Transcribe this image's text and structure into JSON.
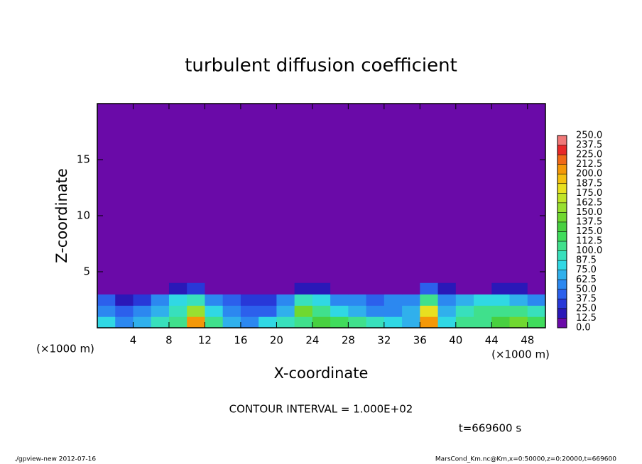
{
  "chart_data": {
    "type": "contour",
    "title": "turbulent diffusion coefficient",
    "x_label": "X-coordinate",
    "y_label": "Z-coordinate",
    "x_unit": "(×1000 m)",
    "y_unit": "(×1000 m)",
    "contour_note": "CONTOUR INTERVAL = 1.000E+02",
    "time_note": "t=669600 s",
    "footer_left": "./gpview-new  2012-07-16",
    "footer_right": "MarsCond_Km.nc@Km,x=0:50000,z=0:20000,t=669600",
    "xlim": [
      0,
      50
    ],
    "ylim": [
      0,
      20
    ],
    "xticks": [
      4,
      8,
      12,
      16,
      20,
      24,
      28,
      32,
      36,
      40,
      44,
      48
    ],
    "yticks": [
      5,
      10,
      15
    ],
    "x": [
      1,
      3,
      5,
      7,
      9,
      11,
      13,
      15,
      17,
      19,
      21,
      23,
      25,
      27,
      29,
      31,
      33,
      35,
      37,
      39,
      41,
      43,
      45,
      47,
      49
    ],
    "y": [
      0.5,
      1.5,
      2.5,
      3.5
    ],
    "z": [
      [
        80,
        60,
        70,
        90,
        110,
        210,
        100,
        70,
        60,
        80,
        90,
        100,
        130,
        120,
        100,
        90,
        80,
        70,
        200,
        80,
        100,
        110,
        130,
        140,
        120
      ],
      [
        60,
        40,
        50,
        70,
        90,
        160,
        80,
        50,
        40,
        40,
        70,
        140,
        100,
        80,
        70,
        60,
        60,
        70,
        180,
        70,
        90,
        100,
        110,
        100,
        90
      ],
      [
        40,
        20,
        30,
        60,
        80,
        90,
        60,
        40,
        30,
        30,
        60,
        90,
        80,
        60,
        50,
        40,
        50,
        60,
        100,
        60,
        70,
        80,
        80,
        70,
        60
      ],
      [
        5,
        5,
        5,
        10,
        20,
        30,
        10,
        5,
        5,
        5,
        10,
        20,
        15,
        10,
        10,
        10,
        5,
        10,
        40,
        15,
        10,
        10,
        20,
        15,
        10
      ]
    ],
    "levels": [
      {
        "value": 0,
        "label": "0.0"
      },
      {
        "value": 12.5,
        "label": "12.5"
      },
      {
        "value": 25,
        "label": "25.0"
      },
      {
        "value": 37.5,
        "label": "37.5"
      },
      {
        "value": 50,
        "label": "50.0"
      },
      {
        "value": 62.5,
        "label": "62.5"
      },
      {
        "value": 75,
        "label": "75.0"
      },
      {
        "value": 87.5,
        "label": "87.5"
      },
      {
        "value": 100,
        "label": "100.0"
      },
      {
        "value": 112.5,
        "label": "112.5"
      },
      {
        "value": 125,
        "label": "125.0"
      },
      {
        "value": 137.5,
        "label": "137.5"
      },
      {
        "value": 150,
        "label": "150.0"
      },
      {
        "value": 162.5,
        "label": "162.5"
      },
      {
        "value": 175,
        "label": "175.0"
      },
      {
        "value": 187.5,
        "label": "187.5"
      },
      {
        "value": 200,
        "label": "200.0"
      },
      {
        "value": 212.5,
        "label": "212.5"
      },
      {
        "value": 225,
        "label": "225.0"
      },
      {
        "value": 237.5,
        "label": "237.5"
      },
      {
        "value": 250,
        "label": "250.0"
      }
    ],
    "colors": [
      "#6a0aa8",
      "#2a18b8",
      "#2838d8",
      "#2c60ec",
      "#2c88f0",
      "#30b0ec",
      "#30d8e4",
      "#38e0bc",
      "#40e08c",
      "#40dc5c",
      "#48d040",
      "#70d830",
      "#98e030",
      "#c0e428",
      "#e8e020",
      "#f4c010",
      "#f49808",
      "#f06818",
      "#e82828",
      "#f07878"
    ]
  }
}
